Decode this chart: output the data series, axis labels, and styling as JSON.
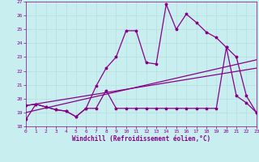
{
  "xlabel": "Windchill (Refroidissement éolien,°C)",
  "bg_color": "#c8eef0",
  "grid_color": "#b8dfe0",
  "line_color": "#880088",
  "xlim": [
    0,
    23
  ],
  "ylim": [
    18,
    27
  ],
  "yticks": [
    18,
    19,
    20,
    21,
    22,
    23,
    24,
    25,
    26,
    27
  ],
  "xticks": [
    0,
    1,
    2,
    3,
    4,
    5,
    6,
    7,
    8,
    9,
    10,
    11,
    12,
    13,
    14,
    15,
    16,
    17,
    18,
    19,
    20,
    21,
    22,
    23
  ],
  "s1_x": [
    0,
    1,
    2,
    3,
    4,
    5,
    6,
    7,
    8,
    9,
    10,
    11,
    12,
    13,
    14,
    15,
    16,
    17,
    18,
    19,
    20,
    21,
    22,
    23
  ],
  "s1_y": [
    18.5,
    19.6,
    19.4,
    19.2,
    19.1,
    18.7,
    19.3,
    20.9,
    22.2,
    23.0,
    24.9,
    24.9,
    22.6,
    22.5,
    26.8,
    25.0,
    26.1,
    25.5,
    24.8,
    24.4,
    23.7,
    23.0,
    20.2,
    19.0
  ],
  "s2_x": [
    0,
    1,
    2,
    3,
    4,
    5,
    6,
    7,
    8,
    9,
    10,
    11,
    12,
    13,
    14,
    15,
    16,
    17,
    18,
    19,
    20,
    21,
    22,
    23
  ],
  "s2_y": [
    19.5,
    19.6,
    19.4,
    19.2,
    19.1,
    18.7,
    19.3,
    19.3,
    20.6,
    19.3,
    19.3,
    19.3,
    19.3,
    19.3,
    19.3,
    19.3,
    19.3,
    19.3,
    19.3,
    19.3,
    23.7,
    20.2,
    19.7,
    19.0
  ],
  "trend1_x": [
    0,
    23
  ],
  "trend1_y": [
    19.0,
    22.8
  ],
  "trend2_x": [
    0,
    23
  ],
  "trend2_y": [
    19.5,
    22.2
  ]
}
